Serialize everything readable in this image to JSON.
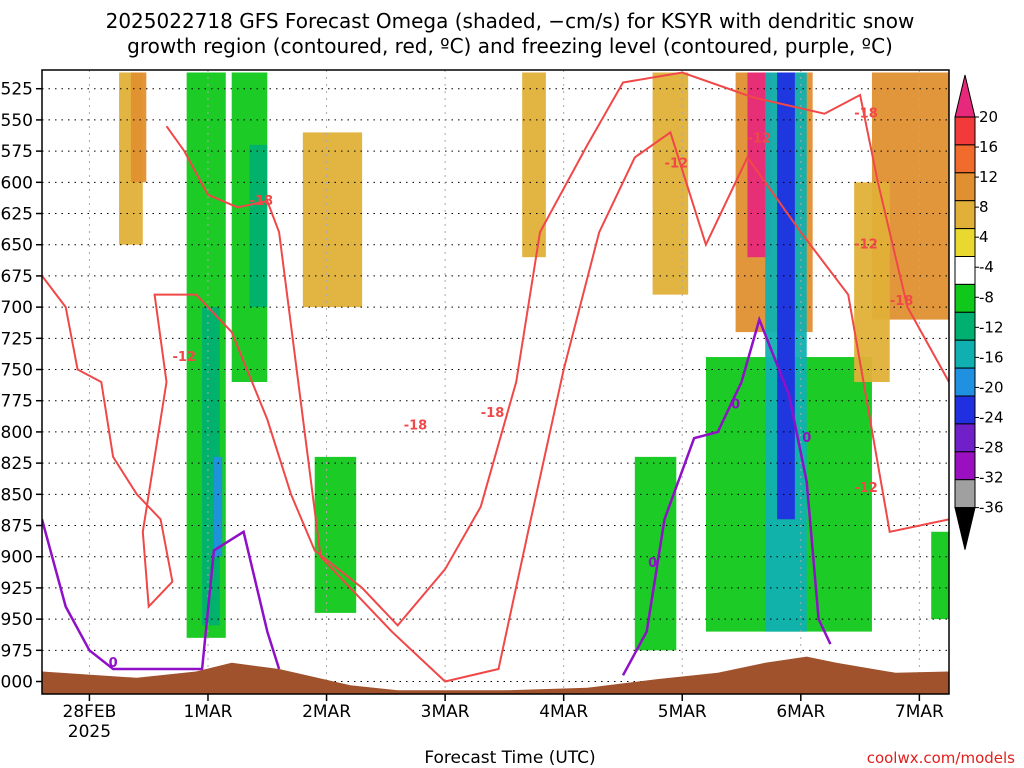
{
  "title_line1": "2025022718 GFS Forecast Omega (shaded, −cm/s) for KSYR with dendritic snow",
  "title_line2": "growth region (contoured, red, ºC) and freezing level (contoured, purple, ºC)",
  "xlabel": "Forecast Time (UTC)",
  "credit": "coolwx.com/models",
  "colors": {
    "contour_red": "#f04848",
    "contour_purple": "#9010c8",
    "terrain": "#a0522d"
  },
  "chart_data": {
    "type": "heatmap",
    "y_axis": {
      "quantity": "pressure (hPa)",
      "ticks": [
        "525",
        "550",
        "575",
        "600",
        "625",
        "650",
        "675",
        "700",
        "725",
        "750",
        "775",
        "800",
        "825",
        "850",
        "875",
        "900",
        "925",
        "950",
        "975",
        "1000"
      ],
      "range": [
        1010,
        510
      ]
    },
    "x_axis": {
      "ticks": [
        "28FEB",
        "1MAR",
        "2MAR",
        "3MAR",
        "4MAR",
        "5MAR",
        "6MAR",
        "7MAR"
      ],
      "first_tick_sub": "2025",
      "range_days": [
        -0.4,
        7.25
      ]
    },
    "grid": true,
    "colorbar": {
      "ticks": [
        "20",
        "16",
        "12",
        "8",
        "4",
        "-4",
        "-8",
        "-12",
        "-16",
        "-20",
        "-24",
        "-28",
        "-32",
        "-36"
      ],
      "bands": [
        {
          "from": 20,
          "to": 24,
          "color": "#e6297a"
        },
        {
          "from": 16,
          "to": 20,
          "color": "#f23a3a"
        },
        {
          "from": 12,
          "to": 16,
          "color": "#f06b2c"
        },
        {
          "from": 8,
          "to": 12,
          "color": "#e09030"
        },
        {
          "from": 4,
          "to": 8,
          "color": "#e0b038"
        },
        {
          "from": 2,
          "to": 4,
          "color": "#e8d830"
        },
        {
          "from": -4,
          "to": 2,
          "color": "#ffffff"
        },
        {
          "from": -8,
          "to": -4,
          "color": "#10c81a"
        },
        {
          "from": -12,
          "to": -8,
          "color": "#00b070"
        },
        {
          "from": -16,
          "to": -12,
          "color": "#10b0b0"
        },
        {
          "from": -20,
          "to": -16,
          "color": "#2090e0"
        },
        {
          "from": -24,
          "to": -20,
          "color": "#2030e0"
        },
        {
          "from": -28,
          "to": -24,
          "color": "#7020c8"
        },
        {
          "from": -32,
          "to": -28,
          "color": "#9a10c0"
        },
        {
          "from": -36,
          "to": -32,
          "color": "#a0a0a0"
        },
        {
          "from": -40,
          "to": -36,
          "color": "#000000"
        }
      ]
    },
    "omega_regions": [
      {
        "d0": 0.25,
        "d1": 0.45,
        "p_top": 512,
        "p_bot": 650,
        "value": 6
      },
      {
        "d0": 0.35,
        "d1": 0.48,
        "p_top": 512,
        "p_bot": 600,
        "value": 10
      },
      {
        "d0": 0.82,
        "d1": 1.15,
        "p_top": 512,
        "p_bot": 965,
        "value": -6
      },
      {
        "d0": 0.95,
        "d1": 1.1,
        "p_top": 700,
        "p_bot": 955,
        "value": -10
      },
      {
        "d0": 1.05,
        "d1": 1.12,
        "p_top": 820,
        "p_bot": 900,
        "value": -18
      },
      {
        "d0": 1.2,
        "d1": 1.5,
        "p_top": 512,
        "p_bot": 760,
        "value": -7
      },
      {
        "d0": 1.35,
        "d1": 1.5,
        "p_top": 570,
        "p_bot": 700,
        "value": -10
      },
      {
        "d0": 1.8,
        "d1": 2.3,
        "p_top": 560,
        "p_bot": 700,
        "value": 5
      },
      {
        "d0": 1.9,
        "d1": 2.25,
        "p_top": 820,
        "p_bot": 945,
        "value": -6
      },
      {
        "d0": 3.65,
        "d1": 3.85,
        "p_top": 512,
        "p_bot": 660,
        "value": 5
      },
      {
        "d0": 4.6,
        "d1": 4.95,
        "p_top": 820,
        "p_bot": 975,
        "value": -6
      },
      {
        "d0": 4.75,
        "d1": 5.05,
        "p_top": 512,
        "p_bot": 690,
        "value": 5
      },
      {
        "d0": 5.2,
        "d1": 6.6,
        "p_top": 740,
        "p_bot": 960,
        "value": -6
      },
      {
        "d0": 5.45,
        "d1": 6.1,
        "p_top": 512,
        "p_bot": 720,
        "value": 9
      },
      {
        "d0": 5.55,
        "d1": 5.75,
        "p_top": 512,
        "p_bot": 660,
        "value": 22
      },
      {
        "d0": 5.7,
        "d1": 6.05,
        "p_top": 512,
        "p_bot": 960,
        "value": -14
      },
      {
        "d0": 5.8,
        "d1": 5.95,
        "p_top": 512,
        "p_bot": 870,
        "value": -22
      },
      {
        "d0": 6.6,
        "d1": 7.25,
        "p_top": 512,
        "p_bot": 710,
        "value": 8
      },
      {
        "d0": 6.45,
        "d1": 6.75,
        "p_top": 600,
        "p_bot": 760,
        "value": 5
      },
      {
        "d0": 7.1,
        "d1": 7.25,
        "p_top": 880,
        "p_bot": 950,
        "value": -6
      }
    ],
    "contours": {
      "minus12": [
        {
          "day": -0.4,
          "p": 675
        },
        {
          "day": -0.2,
          "p": 700
        },
        {
          "day": -0.1,
          "p": 750
        },
        {
          "day": 0.1,
          "p": 760
        },
        {
          "day": 0.2,
          "p": 820
        },
        {
          "day": 0.4,
          "p": 850
        },
        {
          "day": 0.6,
          "p": 870
        },
        {
          "day": 0.7,
          "p": 920
        },
        {
          "day": 0.5,
          "p": 940
        },
        {
          "day": 0.45,
          "p": 880
        },
        {
          "day": 0.65,
          "p": 760
        },
        {
          "day": 0.55,
          "p": 690
        },
        {
          "day": 0.9,
          "p": 690
        },
        {
          "day": 1.2,
          "p": 720
        },
        {
          "day": 1.5,
          "p": 790
        },
        {
          "day": 1.7,
          "p": 850
        },
        {
          "day": 1.9,
          "p": 895
        },
        {
          "day": 2.3,
          "p": 925
        },
        {
          "day": 2.6,
          "p": 955
        },
        {
          "day": 3.0,
          "p": 910
        },
        {
          "day": 3.3,
          "p": 860
        },
        {
          "day": 3.6,
          "p": 760
        },
        {
          "day": 3.8,
          "p": 640
        },
        {
          "day": 4.2,
          "p": 570
        },
        {
          "day": 4.5,
          "p": 520
        },
        {
          "day": 5.0,
          "p": 512
        },
        {
          "day": 5.6,
          "p": 532
        },
        {
          "day": 6.2,
          "p": 545
        },
        {
          "day": 6.5,
          "p": 530
        },
        {
          "day": 6.65,
          "p": 600
        },
        {
          "day": 6.8,
          "p": 660
        },
        {
          "day": 6.9,
          "p": 700
        },
        {
          "day": 7.25,
          "p": 760
        }
      ],
      "minus18": [
        {
          "day": 0.65,
          "p": 555
        },
        {
          "day": 0.8,
          "p": 575
        },
        {
          "day": 1.0,
          "p": 610
        },
        {
          "day": 1.25,
          "p": 620
        },
        {
          "day": 1.5,
          "p": 615
        },
        {
          "day": 1.6,
          "p": 640
        },
        {
          "day": 1.95,
          "p": 900
        },
        {
          "day": 2.55,
          "p": 960
        },
        {
          "day": 3.0,
          "p": 1000
        },
        {
          "day": 3.45,
          "p": 990
        },
        {
          "day": 3.7,
          "p": 880
        },
        {
          "day": 4.0,
          "p": 750
        },
        {
          "day": 4.3,
          "p": 640
        },
        {
          "day": 4.6,
          "p": 580
        },
        {
          "day": 4.9,
          "p": 560
        },
        {
          "day": 5.2,
          "p": 650
        },
        {
          "day": 5.55,
          "p": 580
        },
        {
          "day": 6.0,
          "p": 640
        },
        {
          "day": 6.4,
          "p": 690
        },
        {
          "day": 6.75,
          "p": 880
        },
        {
          "day": 7.25,
          "p": 870
        }
      ],
      "zero_freezing": [
        {
          "day": -0.4,
          "p": 870
        },
        {
          "day": -0.2,
          "p": 940
        },
        {
          "day": 0.0,
          "p": 975
        },
        {
          "day": 0.2,
          "p": 990
        },
        {
          "day": 0.95,
          "p": 990
        },
        {
          "day": 1.05,
          "p": 895
        },
        {
          "day": 1.3,
          "p": 880
        },
        {
          "day": 1.5,
          "p": 960
        },
        {
          "day": 1.6,
          "p": 990
        }
      ],
      "zero_freezing_east": [
        {
          "day": 4.5,
          "p": 995
        },
        {
          "day": 4.7,
          "p": 960
        },
        {
          "day": 4.85,
          "p": 870
        },
        {
          "day": 5.1,
          "p": 805
        },
        {
          "day": 5.3,
          "p": 800
        },
        {
          "day": 5.5,
          "p": 760
        },
        {
          "day": 5.65,
          "p": 710
        },
        {
          "day": 5.9,
          "p": 770
        },
        {
          "day": 6.05,
          "p": 840
        },
        {
          "day": 6.15,
          "p": 950
        },
        {
          "day": 6.25,
          "p": 970
        }
      ]
    },
    "contour_labels": [
      {
        "text": "-18",
        "day": 1.45,
        "p": 615,
        "color": "red"
      },
      {
        "text": "-12",
        "day": 0.8,
        "p": 740,
        "color": "red"
      },
      {
        "text": "-18",
        "day": 2.75,
        "p": 795,
        "color": "red"
      },
      {
        "text": "-18",
        "day": 3.4,
        "p": 785,
        "color": "red"
      },
      {
        "text": "-12",
        "day": 4.95,
        "p": 585,
        "color": "red"
      },
      {
        "text": "-12",
        "day": 5.65,
        "p": 565,
        "color": "red"
      },
      {
        "text": "-18",
        "day": 6.55,
        "p": 545,
        "color": "red"
      },
      {
        "text": "-12",
        "day": 6.55,
        "p": 650,
        "color": "red"
      },
      {
        "text": "-18",
        "day": 6.85,
        "p": 695,
        "color": "red"
      },
      {
        "text": "-12",
        "day": 6.55,
        "p": 845,
        "color": "red"
      },
      {
        "text": "0",
        "day": 0.2,
        "p": 985,
        "color": "purple"
      },
      {
        "text": "0",
        "day": 5.45,
        "p": 778,
        "color": "purple"
      },
      {
        "text": "0",
        "day": 6.05,
        "p": 805,
        "color": "purple"
      },
      {
        "text": "0",
        "day": 4.75,
        "p": 905,
        "color": "purple"
      }
    ],
    "terrain": [
      {
        "day": -0.4,
        "p": 992
      },
      {
        "day": 0.4,
        "p": 997
      },
      {
        "day": 0.9,
        "p": 992
      },
      {
        "day": 1.2,
        "p": 985
      },
      {
        "day": 1.6,
        "p": 990
      },
      {
        "day": 2.2,
        "p": 1003
      },
      {
        "day": 2.6,
        "p": 1007
      },
      {
        "day": 3.5,
        "p": 1007
      },
      {
        "day": 4.2,
        "p": 1005
      },
      {
        "day": 4.8,
        "p": 998
      },
      {
        "day": 5.3,
        "p": 993
      },
      {
        "day": 5.7,
        "p": 985
      },
      {
        "day": 6.05,
        "p": 980
      },
      {
        "day": 6.3,
        "p": 985
      },
      {
        "day": 6.8,
        "p": 993
      },
      {
        "day": 7.25,
        "p": 992
      }
    ]
  }
}
